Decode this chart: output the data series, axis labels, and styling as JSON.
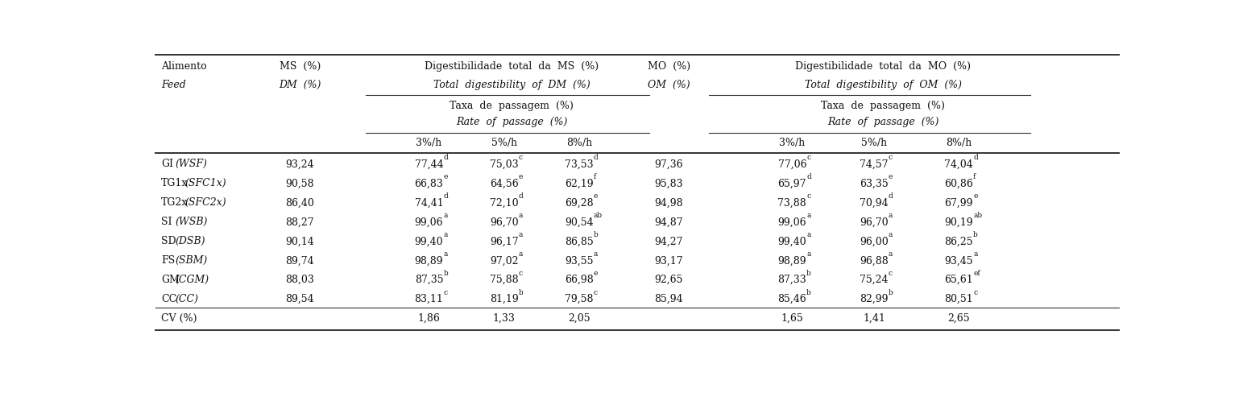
{
  "rows": [
    [
      "GI",
      "(WSF)",
      "93,24",
      "77,44",
      "d",
      "75,03",
      "c",
      "73,53",
      "d",
      "97,36",
      "77,06",
      "c",
      "74,57",
      "c",
      "74,04",
      "d"
    ],
    [
      "TG1x",
      "(SFC1x)",
      "90,58",
      "66,83",
      "e",
      "64,56",
      "e",
      "62,19",
      "f",
      "95,83",
      "65,97",
      "d",
      "63,35",
      "e",
      "60,86",
      "f"
    ],
    [
      "TG2x",
      "(SFC2x)",
      "86,40",
      "74,41",
      "d",
      "72,10",
      "d",
      "69,28",
      "e",
      "94,98",
      "73,88",
      "c",
      "70,94",
      "d",
      "67,99",
      "e"
    ],
    [
      "SI",
      "(WSB)",
      "88,27",
      "99,06",
      "a",
      "96,70",
      "a",
      "90,54",
      "ab",
      "94,87",
      "99,06",
      "a",
      "96,70",
      "a",
      "90,19",
      "ab"
    ],
    [
      "SD",
      "(DSB)",
      "90,14",
      "99,40",
      "a",
      "96,17",
      "a",
      "86,85",
      "b",
      "94,27",
      "99,40",
      "a",
      "96,00",
      "a",
      "86,25",
      "b"
    ],
    [
      "FS",
      "(SBM)",
      "89,74",
      "98,89",
      "a",
      "97,02",
      "a",
      "93,55",
      "a",
      "93,17",
      "98,89",
      "a",
      "96,88",
      "a",
      "93,45",
      "a"
    ],
    [
      "GM",
      "(CGM)",
      "88,03",
      "87,35",
      "b",
      "75,88",
      "c",
      "66,98",
      "e",
      "92,65",
      "87,33",
      "b",
      "75,24",
      "c",
      "65,61",
      "ef"
    ],
    [
      "CC",
      "(CC)",
      "89,54",
      "83,11",
      "c",
      "81,19",
      "b",
      "79,58",
      "c",
      "85,94",
      "85,46",
      "b",
      "82,99",
      "b",
      "80,51",
      "c"
    ],
    [
      "CV (%)",
      "",
      "",
      "1,86",
      "",
      "1,33",
      "",
      "2,05",
      "",
      "",
      "1,65",
      "",
      "1,41",
      "",
      "2,65",
      ""
    ]
  ],
  "bg_color": "#ffffff",
  "text_color": "#111111",
  "line_color": "#333333",
  "font_size": 9.0,
  "sup_font_size": 6.5
}
